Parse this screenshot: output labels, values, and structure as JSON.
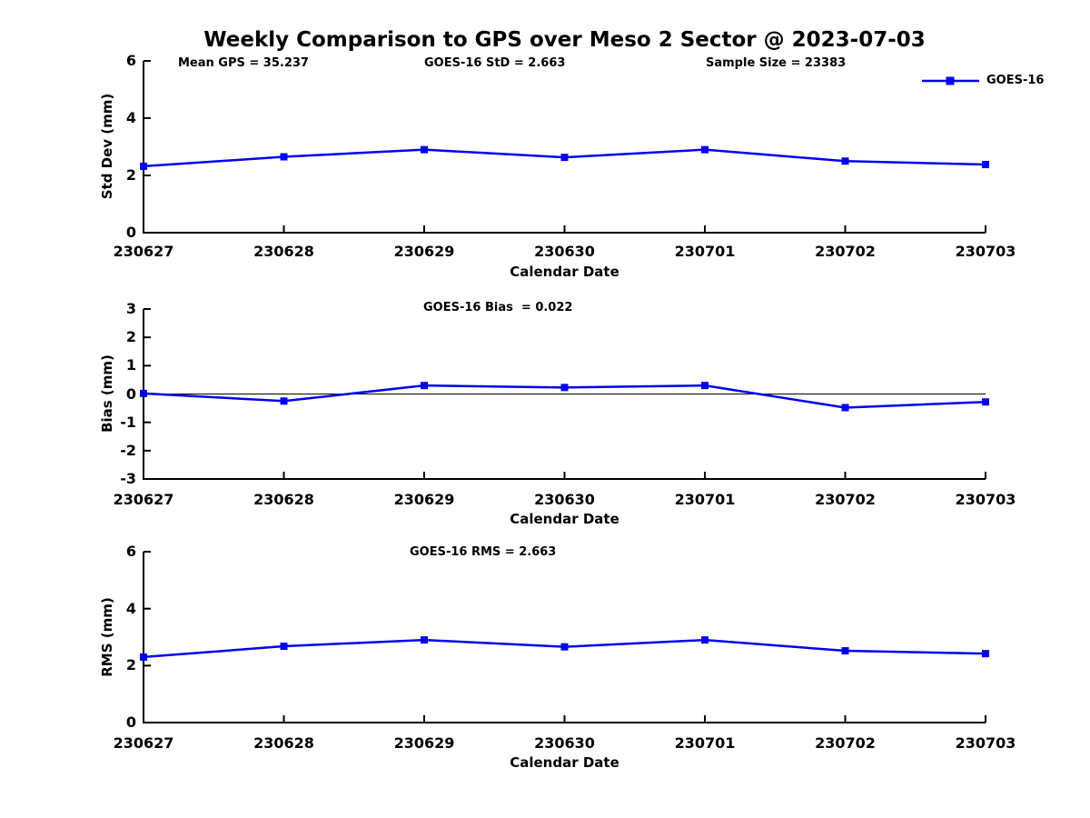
{
  "title": "Weekly Comparison to GPS over Meso 2 Sector @ 2023-07-03",
  "colors": {
    "series": "#0000f0",
    "axis": "#000000",
    "background": "#ffffff"
  },
  "legend": {
    "label": "GOES-16",
    "marker": "filled-square",
    "position": "top-right"
  },
  "chart_data": [
    {
      "type": "line",
      "annotations": [
        "Mean GPS = 35.237",
        "GOES-16 StD = 2.663",
        "Sample Size = 23383"
      ],
      "categories": [
        "230627",
        "230628",
        "230629",
        "230630",
        "230701",
        "230702",
        "230703"
      ],
      "series": [
        {
          "name": "GOES-16",
          "values": [
            2.32,
            2.65,
            2.9,
            2.63,
            2.9,
            2.5,
            2.38
          ]
        }
      ],
      "xlabel": "Calendar Date",
      "ylabel": "Std Dev (mm)",
      "ylim": [
        0,
        6
      ],
      "yticks": [
        6,
        4,
        2,
        0
      ],
      "grid": false,
      "legend_entries": [
        "GOES-16"
      ]
    },
    {
      "type": "line",
      "annotation": "GOES-16 Bias  = 0.022",
      "categories": [
        "230627",
        "230628",
        "230629",
        "230630",
        "230701",
        "230702",
        "230703"
      ],
      "series": [
        {
          "name": "GOES-16",
          "values": [
            0.02,
            -0.25,
            0.3,
            0.23,
            0.3,
            -0.48,
            -0.28
          ]
        }
      ],
      "xlabel": "Calendar Date",
      "ylabel": "Bias (mm)",
      "ylim": [
        -3,
        3
      ],
      "yticks": [
        3,
        2,
        1,
        0,
        -1,
        -2,
        -3
      ],
      "zero_line": true,
      "grid": false
    },
    {
      "type": "line",
      "annotation": "GOES-16 RMS = 2.663",
      "categories": [
        "230627",
        "230628",
        "230629",
        "230630",
        "230701",
        "230702",
        "230703"
      ],
      "series": [
        {
          "name": "GOES-16",
          "values": [
            2.3,
            2.68,
            2.9,
            2.66,
            2.9,
            2.52,
            2.42
          ]
        }
      ],
      "xlabel": "Calendar Date",
      "ylabel": "RMS (mm)",
      "ylim": [
        0,
        6
      ],
      "yticks": [
        6,
        4,
        2,
        0
      ],
      "grid": false
    }
  ]
}
